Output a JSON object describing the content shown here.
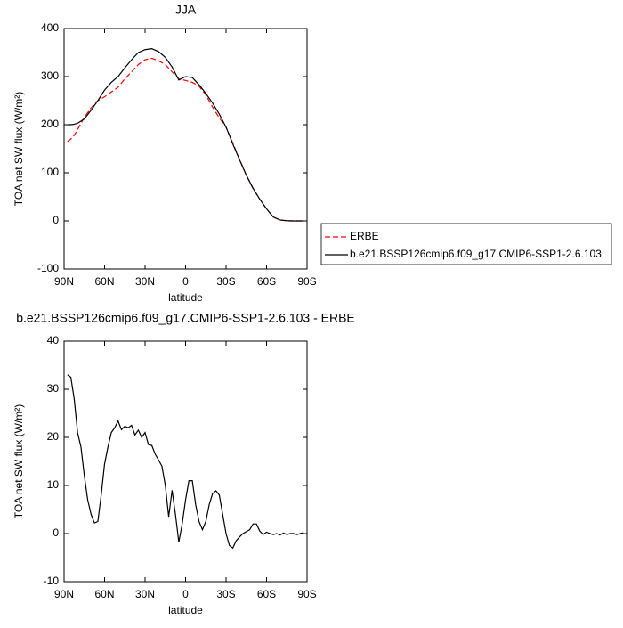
{
  "chart_data": [
    {
      "type": "line",
      "title": "JJA",
      "xlabel": "latitude",
      "ylabel": "TOA net SW flux (W/m²)",
      "x": [
        87.5,
        85,
        82.5,
        80,
        75,
        70,
        65,
        60,
        55,
        50,
        45,
        40,
        35,
        30,
        25,
        20,
        15,
        10,
        5,
        0,
        -5,
        -10,
        -15,
        -20,
        -25,
        -30,
        -35,
        -40,
        -45,
        -50,
        -55,
        -60,
        -65,
        -70,
        -75,
        -80,
        -85,
        -87.5
      ],
      "series": [
        {
          "name": "ERBE",
          "color": "#ff0000",
          "dashed": true,
          "values": [
            165,
            170,
            178,
            190,
            215,
            235,
            250,
            258,
            268,
            278,
            295,
            310,
            325,
            335,
            338,
            333,
            325,
            310,
            295,
            292,
            288,
            280,
            262,
            237,
            214,
            195,
            162,
            128,
            95,
            67,
            45,
            25,
            8,
            2,
            0,
            0,
            0,
            0
          ]
        },
        {
          "name": "b.e21.BSSP126cmip6.f09_g17.CMIP6-SSP1-2.6.103",
          "color": "#000000",
          "dashed": false,
          "values": [
            200,
            200,
            201,
            203,
            212,
            230,
            250,
            272,
            288,
            300,
            318,
            335,
            350,
            356,
            358,
            352,
            340,
            320,
            293,
            300,
            298,
            283,
            265,
            245,
            222,
            195,
            160,
            127,
            95,
            68,
            45,
            25,
            8,
            2,
            0.5,
            0,
            0,
            0
          ]
        }
      ],
      "xlim": [
        90,
        -90
      ],
      "xticks": [
        {
          "value": 90,
          "label": "90N"
        },
        {
          "value": 60,
          "label": "60N"
        },
        {
          "value": 30,
          "label": "30N"
        },
        0,
        {
          "value": -30,
          "label": "30S"
        },
        {
          "value": -60,
          "label": "60S"
        },
        {
          "value": -90,
          "label": "90S"
        }
      ],
      "ylim": [
        -100,
        400
      ],
      "yticks": [
        -100,
        0,
        100,
        200,
        300,
        400
      ],
      "legend": "right"
    },
    {
      "type": "line",
      "title": "b.e21.BSSP126cmip6.f09_g17.CMIP6-SSP1-2.6.103 - ERBE",
      "xlabel": "latitude",
      "ylabel": "TOA net SW flux (W/m²)",
      "x": [
        87.5,
        85,
        82.5,
        80,
        77.5,
        75,
        72.5,
        70,
        67.5,
        65,
        62.5,
        60,
        57.5,
        55,
        52.5,
        50,
        47.5,
        45,
        42.5,
        40,
        37.5,
        35,
        32.5,
        30,
        27.5,
        25,
        22.5,
        20,
        17.5,
        15,
        12.5,
        10,
        7.5,
        5,
        2.5,
        0,
        -2.5,
        -5,
        -7.5,
        -10,
        -12.5,
        -15,
        -17.5,
        -20,
        -22.5,
        -25,
        -27.5,
        -30,
        -32.5,
        -35,
        -37.5,
        -40,
        -42.5,
        -45,
        -47.5,
        -50,
        -52.5,
        -55,
        -57.5,
        -60,
        -62.5,
        -65,
        -67.5,
        -70,
        -72.5,
        -75,
        -77.5,
        -80,
        -82.5,
        -85,
        -87.5
      ],
      "series": [
        {
          "color": "#000000",
          "dashed": false,
          "values": [
            33,
            32.5,
            28,
            21,
            18,
            12,
            7,
            4,
            2.2,
            2.5,
            8,
            14.5,
            18,
            21,
            22,
            23.4,
            21.6,
            22.3,
            22,
            22.5,
            20.5,
            21.5,
            20,
            21,
            18.5,
            18.3,
            16.5,
            15.3,
            14,
            10,
            3.5,
            9,
            4,
            -1.8,
            2,
            7,
            11,
            11,
            6,
            2.5,
            0.8,
            2.5,
            6,
            8.3,
            8.9,
            8,
            4,
            0,
            -2.5,
            -3,
            -1.5,
            -0.7,
            0,
            0.4,
            0.8,
            2,
            2,
            0.5,
            -0.2,
            0.3,
            0,
            -0.2,
            0,
            -0.3,
            0.1,
            -0.2,
            0,
            0,
            -0.2,
            0,
            0.2
          ]
        }
      ],
      "xlim": [
        90,
        -90
      ],
      "xticks": [
        {
          "value": 90,
          "label": "90N"
        },
        {
          "value": 60,
          "label": "60N"
        },
        {
          "value": 30,
          "label": "30N"
        },
        0,
        {
          "value": -30,
          "label": "30S"
        },
        {
          "value": -60,
          "label": "60S"
        },
        {
          "value": -90,
          "label": "90S"
        }
      ],
      "ylim": [
        -10,
        40
      ],
      "yticks": [
        -10,
        0,
        10,
        20,
        30,
        40
      ]
    }
  ]
}
